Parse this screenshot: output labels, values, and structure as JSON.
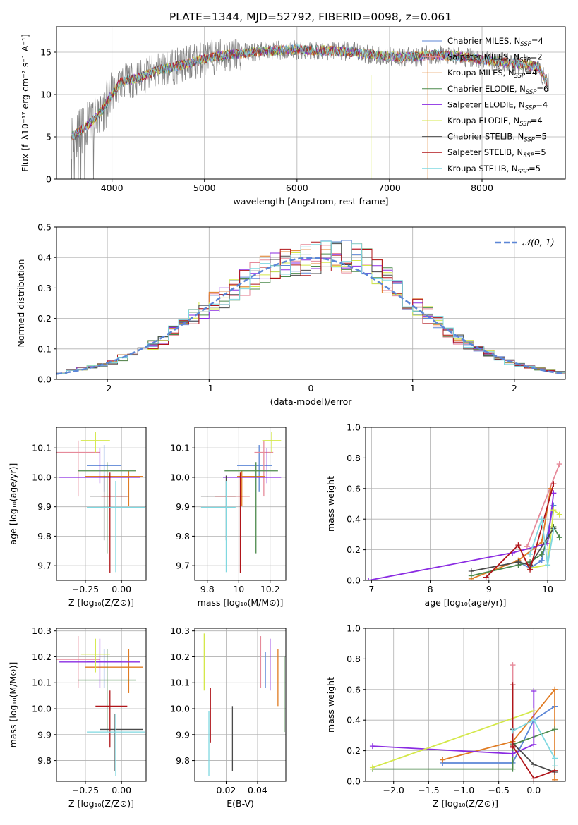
{
  "figure_title": "PLATE=1344, MJD=52792, FIBERID=0098, z=0.061",
  "colors": {
    "Chabrier MILES": "#5b86d6",
    "Salpeter MILES": "#e68a9a",
    "Kroupa MILES": "#e07b22",
    "Chabrier ELODIE": "#4c8a4c",
    "Salpeter ELODIE": "#8a2be2",
    "Kroupa ELODIE": "#d4e84a",
    "Chabrier STELIB": "#4a4a4a",
    "Salpeter STELIB": "#b0151a",
    "Kroupa STELIB": "#7fd8e0",
    "data": "#808080",
    "normal": "#5b86d6"
  },
  "chart_data": [
    {
      "id": "spectrum",
      "type": "line",
      "xlabel": "wavelength [Angstrom, rest frame]",
      "ylabel": "Flux [f_λ10⁻¹⁷ erg cm⁻² s⁻¹ A⁻¹]",
      "xlim": [
        3400,
        8900
      ],
      "ylim": [
        0,
        18
      ],
      "xticks": [
        4000,
        5000,
        6000,
        7000,
        8000
      ],
      "yticks": [
        0,
        5,
        10,
        15
      ],
      "legend_position": "upper right",
      "series": [
        {
          "name": "Chabrier MILES, N_SSP=4"
        },
        {
          "name": "Salpeter MILES, N_SSP=2"
        },
        {
          "name": "Kroupa MILES, N_SSP=4"
        },
        {
          "name": "Chabrier ELODIE, N_SSP=6"
        },
        {
          "name": "Salpeter ELODIE, N_SSP=4"
        },
        {
          "name": "Kroupa ELODIE, N_SSP=4"
        },
        {
          "name": "Chabrier STELIB, N_SSP=5"
        },
        {
          "name": "Salpeter STELIB, N_SSP=5"
        },
        {
          "name": "Kroupa STELIB, N_SSP=5"
        }
      ],
      "continuum": {
        "x": [
          3600,
          3750,
          3900,
          4000,
          4100,
          4300,
          4500,
          4800,
          5000,
          5200,
          5500,
          5800,
          6000,
          6300,
          6600,
          6900,
          7200,
          7500,
          7800,
          8100,
          8400,
          8600,
          8700
        ],
        "y": [
          5.2,
          6.5,
          8.2,
          10.0,
          11.5,
          12.0,
          12.9,
          13.6,
          14.2,
          14.6,
          15.0,
          15.2,
          15.3,
          15.2,
          15.0,
          14.6,
          14.4,
          14.7,
          14.4,
          14.0,
          13.6,
          13.3,
          11.5
        ]
      }
    },
    {
      "id": "residuals",
      "type": "line",
      "xlabel": "(data-model)/error",
      "ylabel": "Normed distribution",
      "xlim": [
        -2.5,
        2.5
      ],
      "ylim": [
        0,
        0.5
      ],
      "xticks": [
        -2,
        -1,
        0,
        1,
        2
      ],
      "yticks": [
        0.0,
        0.1,
        0.2,
        0.3,
        0.4,
        0.5
      ],
      "legend": "𝒩(0, 1)",
      "legend_position": "upper right",
      "bin_width": 0.1,
      "histogram_shape": {
        "x": [
          -2.5,
          -2.0,
          -1.5,
          -1.0,
          -0.5,
          0.0,
          0.5,
          1.0,
          1.5,
          2.0,
          2.5
        ],
        "y": [
          0.02,
          0.05,
          0.12,
          0.24,
          0.35,
          0.4,
          0.4,
          0.25,
          0.12,
          0.05,
          0.02
        ]
      },
      "normal": {
        "mean": 0,
        "sigma": 1
      }
    },
    {
      "id": "age-vs-Z",
      "type": "scatter",
      "xlabel": "Z [log₁₀(Z/Z⊙)]",
      "ylabel": "age  [log₁₀(age/yr)]",
      "xlim": [
        -0.45,
        0.17
      ],
      "ylim": [
        9.65,
        10.17
      ],
      "xticks": [
        -0.25,
        0.0
      ],
      "xtick_labels": [
        "−0.25",
        "0.00"
      ],
      "yticks": [
        9.7,
        9.8,
        9.9,
        10.0,
        10.1
      ],
      "points": [
        {
          "series": "Chabrier MILES",
          "x": -0.12,
          "xerr": [
            0.12,
            0.12
          ],
          "y": 10.04,
          "yerr": [
            0.09,
            0.07
          ]
        },
        {
          "series": "Salpeter MILES",
          "x": -0.3,
          "xerr": [
            0.15,
            0.15
          ],
          "y": 10.085,
          "yerr": [
            0.15,
            0.04
          ]
        },
        {
          "series": "Kroupa MILES",
          "x": 0.05,
          "xerr": [
            0.3,
            0.1
          ],
          "y": 10.003,
          "yerr": [
            0.1,
            0.02
          ]
        },
        {
          "series": "Chabrier ELODIE",
          "x": -0.1,
          "xerr": [
            0.2,
            0.2
          ],
          "y": 10.022,
          "yerr": [
            0.28,
            0.03
          ]
        },
        {
          "series": "Salpeter ELODIE",
          "x": -0.15,
          "xerr": [
            0.28,
            0.28
          ],
          "y": 10.0,
          "yerr": [
            0.02,
            0.1
          ]
        },
        {
          "series": "Kroupa ELODIE",
          "x": -0.18,
          "xerr": [
            0.1,
            0.1
          ],
          "y": 10.125,
          "yerr": [
            0.04,
            0.03
          ]
        },
        {
          "series": "Chabrier STELIB",
          "x": -0.12,
          "xerr": [
            0.1,
            0.17
          ],
          "y": 9.936,
          "yerr": [
            0.15,
            0.07
          ]
        },
        {
          "series": "Salpeter STELIB",
          "x": -0.08,
          "xerr": [
            0.06,
            0.12
          ],
          "y": 9.936,
          "yerr": [
            0.26,
            0.08
          ]
        },
        {
          "series": "Kroupa STELIB",
          "x": -0.04,
          "xerr": [
            0.2,
            0.2
          ],
          "y": 9.898,
          "yerr": [
            0.22,
            0.09
          ]
        }
      ]
    },
    {
      "id": "age-vs-mass",
      "type": "scatter",
      "xlabel": "mass [log₁₀(M/M⊙)]",
      "xlim": [
        9.72,
        10.3
      ],
      "ylim": [
        9.65,
        10.17
      ],
      "xticks": [
        9.8,
        10.0,
        10.2
      ],
      "yticks": [
        9.7,
        9.8,
        9.9,
        10.0,
        10.1
      ],
      "points": [
        {
          "series": "Chabrier MILES",
          "x": 10.13,
          "xerr": [
            0.14,
            0.08
          ],
          "y": 10.04,
          "yerr": [
            0.09,
            0.07
          ]
        },
        {
          "series": "Salpeter MILES",
          "x": 10.16,
          "xerr": [
            0.06,
            0.06
          ],
          "y": 10.085,
          "yerr": [
            0.15,
            0.04
          ]
        },
        {
          "series": "Kroupa MILES",
          "x": 10.02,
          "xerr": [
            0.03,
            0.15
          ],
          "y": 10.003,
          "yerr": [
            0.1,
            0.02
          ]
        },
        {
          "series": "Chabrier ELODIE",
          "x": 10.11,
          "xerr": [
            0.2,
            0.14
          ],
          "y": 10.022,
          "yerr": [
            0.28,
            0.03
          ]
        },
        {
          "series": "Salpeter ELODIE",
          "x": 10.18,
          "xerr": [
            0.28,
            0.09
          ],
          "y": 10.0,
          "yerr": [
            0.02,
            0.1
          ]
        },
        {
          "series": "Kroupa ELODIE",
          "x": 10.21,
          "xerr": [
            0.06,
            0.06
          ],
          "y": 10.125,
          "yerr": [
            0.04,
            0.03
          ]
        },
        {
          "series": "Chabrier STELIB",
          "x": 9.92,
          "xerr": [
            0.16,
            0.06
          ],
          "y": 9.936,
          "yerr": [
            0.15,
            0.07
          ]
        },
        {
          "series": "Salpeter STELIB",
          "x": 10.01,
          "xerr": [
            0.16,
            0.06
          ],
          "y": 9.936,
          "yerr": [
            0.26,
            0.08
          ]
        },
        {
          "series": "Kroupa STELIB",
          "x": 9.92,
          "xerr": [
            0.16,
            0.06
          ],
          "y": 9.898,
          "yerr": [
            0.22,
            0.09
          ]
        }
      ]
    },
    {
      "id": "mass-weight-vs-age",
      "type": "line",
      "xlabel": "age  [log₁₀(age/yr)]",
      "ylabel": "mass weight",
      "xlim": [
        6.9,
        10.3
      ],
      "ylim": [
        0,
        1
      ],
      "xticks": [
        7,
        8,
        9,
        10
      ],
      "yticks": [
        0.0,
        0.2,
        0.4,
        0.6,
        0.8,
        1.0
      ],
      "series": [
        {
          "name": "Chabrier MILES",
          "x": [
            9.5,
            9.7,
            9.9,
            10.1
          ],
          "y": [
            0.12,
            0.08,
            0.13,
            0.49
          ]
        },
        {
          "name": "Salpeter MILES",
          "x": [
            9.65,
            10.2
          ],
          "y": [
            0.22,
            0.76
          ]
        },
        {
          "name": "Kroupa MILES",
          "x": [
            8.7,
            9.5,
            9.9,
            10.05
          ],
          "y": [
            0.01,
            0.13,
            0.25,
            0.6
          ]
        },
        {
          "name": "Chabrier ELODIE",
          "x": [
            8.7,
            9.5,
            9.7,
            9.9,
            10.1,
            10.2
          ],
          "y": [
            0.03,
            0.1,
            0.12,
            0.17,
            0.35,
            0.28
          ]
        },
        {
          "name": "Salpeter ELODIE",
          "x": [
            6.95,
            9.4,
            10.0,
            10.1
          ],
          "y": [
            0.0,
            0.18,
            0.24,
            0.57
          ]
        },
        {
          "name": "Kroupa ELODIE",
          "x": [
            9.7,
            10.0,
            10.1,
            10.2
          ],
          "y": [
            0.08,
            0.1,
            0.46,
            0.43
          ]
        },
        {
          "name": "Chabrier STELIB",
          "x": [
            8.7,
            9.5,
            9.7,
            10.1
          ],
          "y": [
            0.06,
            0.12,
            0.1,
            0.34
          ]
        },
        {
          "name": "Salpeter STELIB",
          "x": [
            8.95,
            9.5,
            9.7,
            10.1
          ],
          "y": [
            0.02,
            0.23,
            0.07,
            0.63
          ]
        },
        {
          "name": "Kroupa STELIB",
          "x": [
            9.7,
            9.9,
            10.0,
            10.1
          ],
          "y": [
            0.17,
            0.4,
            0.1,
            0.33
          ]
        }
      ]
    },
    {
      "id": "mass-vs-Z",
      "type": "scatter",
      "xlabel": "Z [log₁₀(Z/Z⊙)]",
      "ylabel": "mass [log₁₀(M/M⊙)]",
      "xlim": [
        -0.45,
        0.17
      ],
      "ylim": [
        9.72,
        10.31
      ],
      "xticks": [
        -0.25,
        0.0
      ],
      "xtick_labels": [
        "−0.25",
        "0.00"
      ],
      "yticks": [
        9.8,
        9.9,
        10.0,
        10.1,
        10.2,
        10.3
      ],
      "points": [
        {
          "series": "Chabrier MILES",
          "x": -0.12,
          "xerr": [
            0.12,
            0.12
          ],
          "y": 10.18,
          "yerr": [
            0.1,
            0.05
          ]
        },
        {
          "series": "Salpeter MILES",
          "x": -0.3,
          "xerr": [
            0.15,
            0.15
          ],
          "y": 10.19,
          "yerr": [
            0.11,
            0.09
          ]
        },
        {
          "series": "Kroupa MILES",
          "x": 0.05,
          "xerr": [
            0.3,
            0.1
          ],
          "y": 10.16,
          "yerr": [
            0.1,
            0.07
          ]
        },
        {
          "series": "Chabrier ELODIE",
          "x": -0.1,
          "xerr": [
            0.2,
            0.2
          ],
          "y": 10.11,
          "yerr": [
            0.2,
            0.12
          ]
        },
        {
          "series": "Salpeter ELODIE",
          "x": -0.15,
          "xerr": [
            0.28,
            0.28
          ],
          "y": 10.18,
          "yerr": [
            0.1,
            0.09
          ]
        },
        {
          "series": "Kroupa ELODIE",
          "x": -0.18,
          "xerr": [
            0.1,
            0.1
          ],
          "y": 10.21,
          "yerr": [
            0.07,
            0.06
          ]
        },
        {
          "series": "Chabrier STELIB",
          "x": -0.05,
          "xerr": [
            0.1,
            0.2
          ],
          "y": 9.92,
          "yerr": [
            0.16,
            0.06
          ]
        },
        {
          "series": "Salpeter STELIB",
          "x": -0.08,
          "xerr": [
            0.1,
            0.12
          ],
          "y": 10.01,
          "yerr": [
            0.16,
            0.06
          ]
        },
        {
          "series": "Kroupa STELIB",
          "x": -0.04,
          "xerr": [
            0.2,
            0.2
          ],
          "y": 9.91,
          "yerr": [
            0.17,
            0.07
          ]
        }
      ]
    },
    {
      "id": "mass-vs-ebv",
      "type": "scatter",
      "xlabel": "E(B-V)",
      "xlim": [
        0.0,
        0.058
      ],
      "ylim": [
        9.72,
        10.31
      ],
      "xticks": [
        0.02,
        0.04
      ],
      "yticks": [
        9.8,
        9.9,
        10.0,
        10.1,
        10.2,
        10.3
      ],
      "points": [
        {
          "series": "Chabrier MILES",
          "x": 0.045,
          "y": 10.18,
          "yerr": [
            0.1,
            0.04
          ]
        },
        {
          "series": "Salpeter MILES",
          "x": 0.042,
          "y": 10.19,
          "yerr": [
            0.11,
            0.09
          ]
        },
        {
          "series": "Kroupa MILES",
          "x": 0.053,
          "y": 10.12,
          "yerr": [
            0.11,
            0.11
          ]
        },
        {
          "series": "Chabrier ELODIE",
          "x": 0.057,
          "y": 10.05,
          "yerr": [
            0.14,
            0.15
          ]
        },
        {
          "series": "Salpeter ELODIE",
          "x": 0.048,
          "y": 10.17,
          "yerr": [
            0.1,
            0.1
          ]
        },
        {
          "series": "Kroupa ELODIE",
          "x": 0.006,
          "y": 10.18,
          "yerr": [
            0.11,
            0.11
          ]
        },
        {
          "series": "Chabrier STELIB",
          "x": 0.024,
          "y": 9.88,
          "yerr": [
            0.12,
            0.13
          ]
        },
        {
          "series": "Salpeter STELIB",
          "x": 0.01,
          "y": 9.98,
          "yerr": [
            0.11,
            0.1
          ]
        },
        {
          "series": "Kroupa STELIB",
          "x": 0.009,
          "y": 9.88,
          "yerr": [
            0.14,
            0.11
          ]
        }
      ]
    },
    {
      "id": "mass-weight-vs-Z",
      "type": "line",
      "xlabel": "Z [log₁₀(Z/Z⊙)]",
      "ylabel": "mass weight",
      "xlim": [
        -2.4,
        0.45
      ],
      "ylim": [
        0,
        1
      ],
      "xticks": [
        -2.0,
        -1.5,
        -1.0,
        -0.5,
        0.0
      ],
      "xtick_labels": [
        "−2.0",
        "−1.5",
        "−1.0",
        "−0.5",
        "0.0"
      ],
      "yticks": [
        0.0,
        0.2,
        0.4,
        0.6,
        0.8,
        1.0
      ],
      "series": [
        {
          "name": "Chabrier MILES",
          "x": [
            -1.3,
            -0.3,
            0.0,
            0.3
          ],
          "y": [
            0.12,
            0.12,
            0.4,
            0.49
          ]
        },
        {
          "name": "Salpeter MILES",
          "x": [
            -0.3,
            -0.3
          ],
          "y": [
            0.22,
            0.76
          ]
        },
        {
          "name": "Kroupa MILES",
          "x": [
            -1.3,
            -0.3,
            0.3,
            0.3
          ],
          "y": [
            0.14,
            0.26,
            0.6,
            0.01
          ]
        },
        {
          "name": "Chabrier ELODIE",
          "x": [
            -2.3,
            -0.3,
            -0.3,
            0.3
          ],
          "y": [
            0.08,
            0.08,
            0.24,
            0.34
          ]
        },
        {
          "name": "Salpeter ELODIE",
          "x": [
            -2.3,
            -0.3,
            0.0,
            0.0
          ],
          "y": [
            0.23,
            0.18,
            0.24,
            0.59
          ]
        },
        {
          "name": "Kroupa ELODIE",
          "x": [
            -2.3,
            0.0
          ],
          "y": [
            0.09,
            0.46
          ]
        },
        {
          "name": "Chabrier STELIB",
          "x": [
            -0.3,
            -0.3,
            0.0,
            0.3
          ],
          "y": [
            0.34,
            0.25,
            0.11,
            0.06
          ]
        },
        {
          "name": "Salpeter STELIB",
          "x": [
            -0.3,
            -0.3,
            0.0,
            0.3
          ],
          "y": [
            0.63,
            0.23,
            0.02,
            0.07
          ]
        },
        {
          "name": "Kroupa STELIB",
          "x": [
            -0.3,
            0.0,
            0.3,
            0.3
          ],
          "y": [
            0.33,
            0.4,
            0.15,
            0.1
          ]
        }
      ]
    }
  ]
}
